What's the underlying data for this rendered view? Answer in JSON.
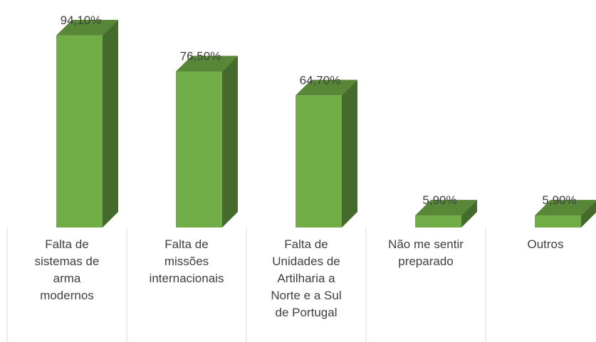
{
  "chart_data": {
    "type": "bar3d",
    "categories": [
      "Falta de sistemas de arma modernos",
      "Falta de missões internacionais",
      "Falta de Unidades de Artilharia a Norte e a Sul de Portugal",
      "Não me sentir preparado",
      "Outros"
    ],
    "values": [
      94.1,
      76.5,
      64.7,
      5.9,
      5.9
    ],
    "value_labels": [
      "94,10%",
      "76,50%",
      "64,70%",
      "5,90%",
      "5,90%"
    ],
    "color": "#70ad47"
  }
}
